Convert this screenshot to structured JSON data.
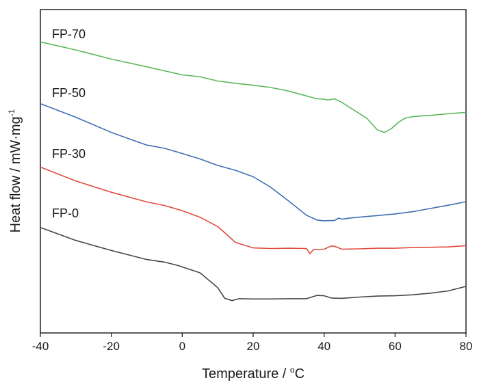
{
  "chart_data": {
    "type": "line",
    "xlabel": "Temperature / ",
    "xlabel_unit_sup": "o",
    "xlabel_unit": "C",
    "ylabel": "Heat flow / mW·mg",
    "ylabel_sup": "-1",
    "xlim": [
      -40,
      80
    ],
    "x_ticks": [
      -40,
      -20,
      0,
      20,
      40,
      60,
      80
    ],
    "y_ticks": [],
    "ylim": [
      0,
      100
    ],
    "grid": false,
    "legend": "none",
    "series": [
      {
        "name": "FP-70",
        "color": "#5cb85c",
        "x": [
          -40,
          -30,
          -20,
          -10,
          0,
          2,
          5,
          10,
          15,
          20,
          25,
          30,
          35,
          38,
          40,
          41,
          43,
          45,
          48,
          52,
          55,
          57,
          59,
          61,
          63,
          65,
          70,
          75,
          80
        ],
        "values": [
          90.0,
          87.5,
          84.7,
          82.3,
          79.8,
          79.6,
          79.2,
          77.9,
          77.2,
          76.6,
          75.9,
          74.8,
          73.3,
          72.4,
          72.3,
          72.0,
          72.4,
          71.3,
          69.2,
          66.4,
          62.8,
          62.0,
          63.2,
          65.2,
          66.5,
          66.9,
          67.3,
          67.8,
          68.2
        ]
      },
      {
        "name": "FP-50",
        "color": "#3d6db5",
        "x": [
          -40,
          -30,
          -20,
          -10,
          -5,
          0,
          5,
          10,
          15,
          20,
          25,
          30,
          35,
          38,
          40,
          43,
          44,
          45,
          48,
          55,
          60,
          65,
          70,
          75,
          80
        ],
        "values": [
          70.9,
          66.7,
          62.0,
          58.1,
          57.1,
          55.5,
          53.8,
          51.8,
          50.3,
          48.3,
          45.0,
          40.8,
          36.4,
          34.9,
          34.7,
          34.8,
          35.5,
          35.2,
          35.6,
          36.3,
          36.8,
          37.5,
          38.5,
          39.5,
          40.6
        ]
      },
      {
        "name": "FP-30",
        "color": "#e04a3f",
        "x": [
          -40,
          -30,
          -20,
          -10,
          -5,
          0,
          5,
          10,
          13,
          15,
          20,
          25,
          30,
          35,
          36,
          37,
          40,
          42,
          43,
          45,
          50,
          55,
          60,
          65,
          70,
          75,
          80
        ],
        "values": [
          51.3,
          47.0,
          43.5,
          40.5,
          39.4,
          37.8,
          35.8,
          32.9,
          30.0,
          28.0,
          26.3,
          26.1,
          26.2,
          26.1,
          24.5,
          25.8,
          25.9,
          26.9,
          26.8,
          25.9,
          26.0,
          26.2,
          26.2,
          26.4,
          26.5,
          26.6,
          27.0
        ]
      },
      {
        "name": "FP-0",
        "color": "#444444",
        "x": [
          -40,
          -30,
          -20,
          -10,
          -5,
          -1,
          0,
          5,
          10,
          12,
          14,
          16,
          20,
          25,
          30,
          35,
          38,
          40,
          42,
          45,
          50,
          55,
          60,
          65,
          70,
          75,
          80
        ],
        "values": [
          32.6,
          28.6,
          25.5,
          22.7,
          21.9,
          20.8,
          20.4,
          18.6,
          14.0,
          10.7,
          10.0,
          10.6,
          10.5,
          10.5,
          10.6,
          10.6,
          11.6,
          11.5,
          10.8,
          10.7,
          11.1,
          11.4,
          11.5,
          11.8,
          12.3,
          13.0,
          14.4
        ]
      }
    ],
    "annotations": [
      "FP-70",
      "FP-50",
      "FP-30",
      "FP-0"
    ]
  }
}
